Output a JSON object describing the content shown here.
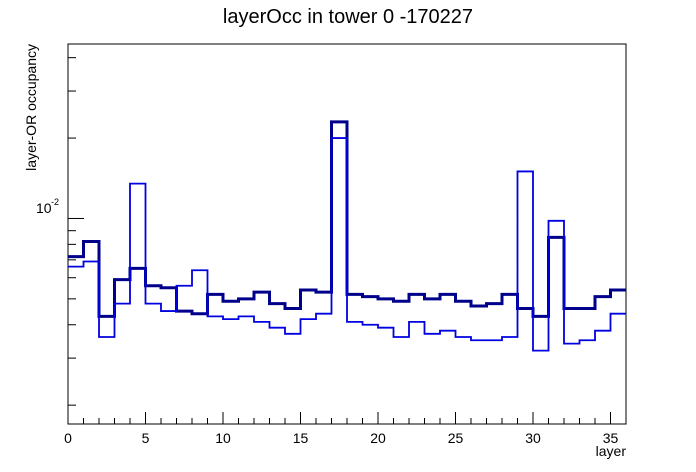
{
  "chart_data": {
    "type": "line",
    "title": "layerOcc in tower 0 -170227",
    "xlabel": "layer",
    "ylabel": "layer-OR occupancy",
    "yscale": "log",
    "xlim": [
      0,
      36
    ],
    "ylim": [
      0.0017,
      0.045
    ],
    "x_ticks": [
      0,
      5,
      10,
      15,
      20,
      25,
      30,
      35
    ],
    "y_tick_label_base": "10",
    "y_tick_label_exp": "-2",
    "grid": false,
    "style": "step",
    "series": [
      {
        "line_style": "thick",
        "color": "#00008b",
        "values": [
          0.0072,
          0.0082,
          0.0043,
          0.0059,
          0.0065,
          0.0056,
          0.0055,
          0.0045,
          0.0044,
          0.0052,
          0.0049,
          0.005,
          0.0053,
          0.0048,
          0.0046,
          0.0054,
          0.0053,
          0.023,
          0.0052,
          0.0051,
          0.005,
          0.0049,
          0.0052,
          0.005,
          0.0052,
          0.0049,
          0.0047,
          0.0048,
          0.0052,
          0.0046,
          0.0043,
          0.0085,
          0.0046,
          0.0046,
          0.0051,
          0.0054
        ]
      },
      {
        "line_style": "thin",
        "color": "#0000e0",
        "values": [
          0.0066,
          0.0069,
          0.0036,
          0.0048,
          0.0135,
          0.0048,
          0.0045,
          0.0056,
          0.0064,
          0.0043,
          0.0042,
          0.0043,
          0.0041,
          0.0039,
          0.0037,
          0.0042,
          0.0044,
          0.02,
          0.0041,
          0.004,
          0.0039,
          0.0036,
          0.0041,
          0.0037,
          0.0038,
          0.0036,
          0.0035,
          0.0035,
          0.0036,
          0.015,
          0.0032,
          0.0098,
          0.0034,
          0.0035,
          0.0038,
          0.0044
        ]
      }
    ]
  }
}
